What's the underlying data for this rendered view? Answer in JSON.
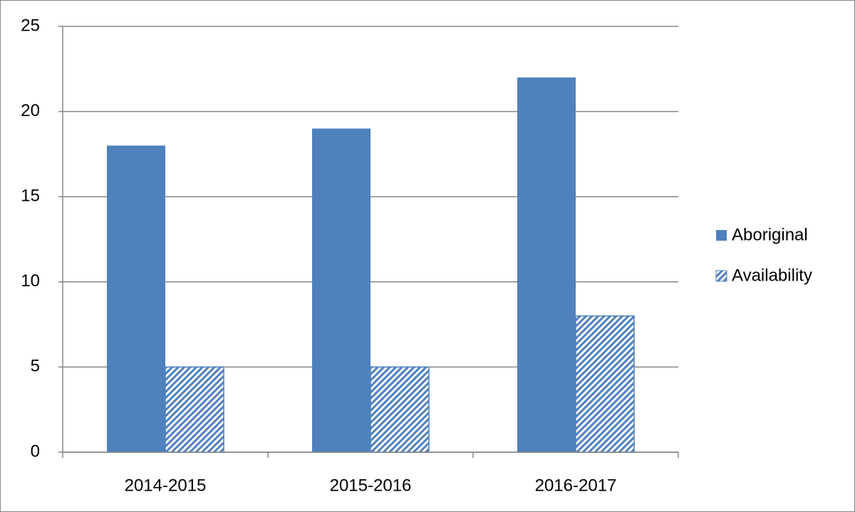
{
  "chart_data": {
    "type": "bar",
    "categories": [
      "2014-2015",
      "2015-2016",
      "2016-2017"
    ],
    "series": [
      {
        "name": "Aboriginal",
        "color": "#4f81bd",
        "hatch": false,
        "values": [
          18,
          19,
          22
        ]
      },
      {
        "name": "Availability",
        "color": "#4f81bd",
        "hatch": true,
        "values": [
          5,
          5,
          8
        ]
      }
    ],
    "ylim": [
      0,
      25
    ],
    "yticks": [
      0,
      5,
      10,
      15,
      20,
      25
    ],
    "grid": true,
    "legend": "right"
  }
}
